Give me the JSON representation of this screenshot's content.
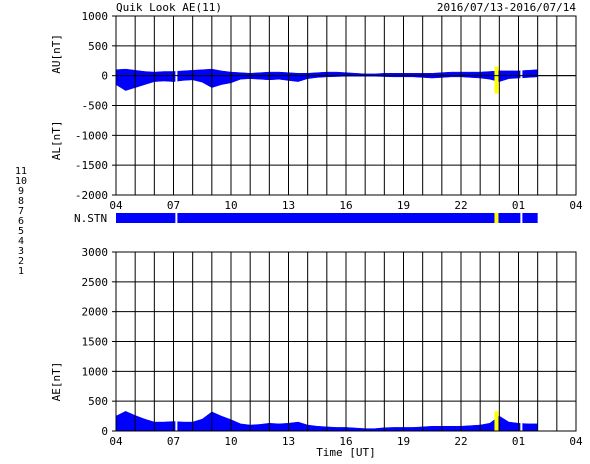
{
  "title": "Quik Look AE(11)",
  "date_range": "2016/07/13-2016/07/14",
  "colors": {
    "fill": "#0000ff",
    "gap_yellow": "#ffff00",
    "grid": "#000000",
    "background": "#ffffff"
  },
  "legend_numbers": [
    {
      "label": "11",
      "color": "#00c8c8"
    },
    {
      "label": "10",
      "color": "#ff00ff"
    },
    {
      "label": "9",
      "color": "#0000c8"
    },
    {
      "label": "8",
      "color": "#ffff00"
    },
    {
      "label": "7",
      "color": "#00b400"
    },
    {
      "label": "6",
      "color": "#ff0000"
    },
    {
      "label": "5",
      "color": "#b4b4b4"
    },
    {
      "label": "4",
      "color": "#7f7f7f"
    },
    {
      "label": "3",
      "color": "#00c8c8"
    },
    {
      "label": "2",
      "color": "#c800c8"
    },
    {
      "label": "1",
      "color": "#0000ff"
    }
  ],
  "chart_data": [
    {
      "type": "area",
      "name": "AU/AL",
      "ylabel_top": "AU[nT]",
      "ylabel_bottom": "AL[nT]",
      "ylim": [
        -2000,
        1000
      ],
      "yticks": [
        1000,
        500,
        0,
        -500,
        -1000,
        -1500,
        -2000
      ],
      "xlim": [
        0,
        24
      ],
      "xticks": [
        "04",
        "07",
        "10",
        "13",
        "16",
        "19",
        "22",
        "01",
        "04"
      ],
      "grid": true,
      "data_end_hour": 22.0,
      "x_hours": [
        0,
        0.5,
        1,
        1.5,
        2,
        2.5,
        3,
        3.5,
        4,
        4.5,
        5,
        5.5,
        6,
        6.5,
        7,
        7.5,
        8,
        8.5,
        9,
        9.5,
        10,
        10.5,
        11,
        11.5,
        12,
        12.5,
        13,
        13.5,
        14,
        14.5,
        15,
        15.5,
        16,
        16.5,
        17,
        17.5,
        18,
        18.5,
        19,
        19.5,
        20,
        20.5,
        21,
        21.5,
        22
      ],
      "au": [
        100,
        110,
        90,
        70,
        60,
        70,
        70,
        80,
        90,
        100,
        110,
        80,
        60,
        50,
        40,
        50,
        60,
        60,
        50,
        40,
        40,
        50,
        60,
        60,
        50,
        40,
        30,
        30,
        40,
        40,
        40,
        40,
        40,
        40,
        50,
        60,
        60,
        60,
        60,
        70,
        80,
        80,
        80,
        90,
        100
      ],
      "al": [
        -150,
        -250,
        -200,
        -150,
        -100,
        -90,
        -100,
        -80,
        -70,
        -110,
        -200,
        -150,
        -120,
        -60,
        -50,
        -60,
        -70,
        -60,
        -80,
        -100,
        -50,
        -30,
        -20,
        -15,
        -10,
        -10,
        -10,
        -10,
        -15,
        -20,
        -20,
        -20,
        -30,
        -40,
        -30,
        -20,
        -20,
        -30,
        -40,
        -60,
        -100,
        -50,
        -40,
        -30,
        -20
      ],
      "yellow_gaps": [
        19.85
      ],
      "white_gaps": [
        3.15,
        21.15
      ]
    },
    {
      "type": "bar",
      "name": "N.STN",
      "label": "N.STN",
      "xlim": [
        0,
        24
      ],
      "data_end_hour": 22.0,
      "yellow_gaps": [
        19.85
      ],
      "white_gaps": [
        3.15,
        21.15
      ]
    },
    {
      "type": "area",
      "name": "AE",
      "ylabel": "AE[nT]",
      "xlabel": "Time [UT]",
      "ylim": [
        0,
        3000
      ],
      "yticks": [
        3000,
        2500,
        2000,
        1500,
        1000,
        500,
        0
      ],
      "xlim": [
        0,
        24
      ],
      "xticks": [
        "04",
        "07",
        "10",
        "13",
        "16",
        "19",
        "22",
        "01",
        "04"
      ],
      "grid": true,
      "data_end_hour": 22.0,
      "x_hours": [
        0,
        0.5,
        1,
        1.5,
        2,
        2.5,
        3,
        3.5,
        4,
        4.5,
        5,
        5.5,
        6,
        6.5,
        7,
        7.5,
        8,
        8.5,
        9,
        9.5,
        10,
        10.5,
        11,
        11.5,
        12,
        12.5,
        13,
        13.5,
        14,
        14.5,
        15,
        15.5,
        16,
        16.5,
        17,
        17.5,
        18,
        18.5,
        19,
        19.5,
        20,
        20.5,
        21,
        21.5,
        22
      ],
      "ae": [
        250,
        330,
        260,
        200,
        150,
        150,
        160,
        150,
        150,
        200,
        320,
        250,
        190,
        120,
        100,
        110,
        130,
        120,
        130,
        150,
        100,
        80,
        70,
        60,
        60,
        50,
        40,
        40,
        55,
        60,
        60,
        60,
        70,
        80,
        80,
        80,
        80,
        90,
        100,
        130,
        250,
        150,
        130,
        120,
        120
      ],
      "yellow_gaps": [
        19.85
      ],
      "white_gaps": [
        3.15,
        21.15
      ]
    }
  ]
}
